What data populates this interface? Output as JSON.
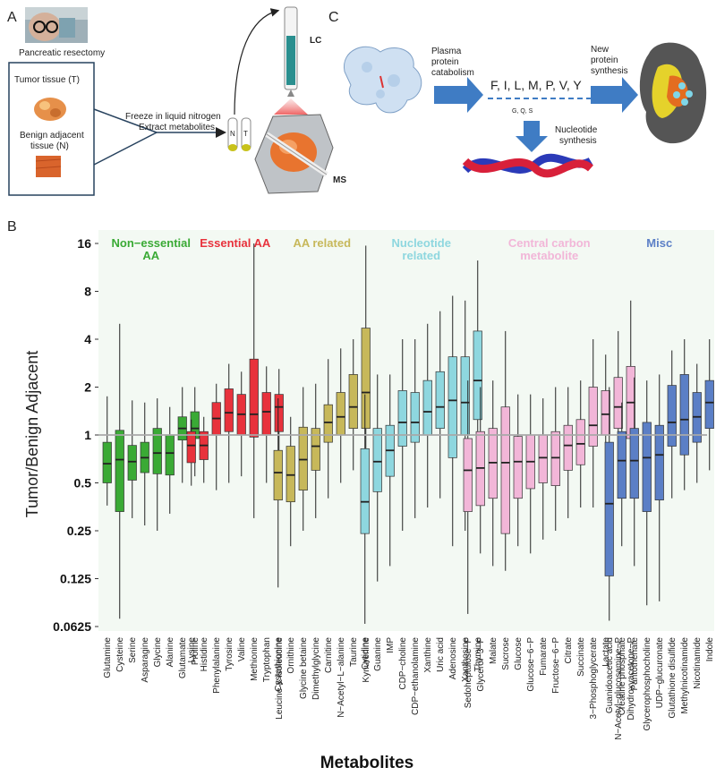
{
  "panelA": {
    "letter": "A",
    "photo_caption": "Pancreatic resectomy",
    "tumor_label": "Tumor tissue (T)",
    "benign_label_1": "Benign adjacent",
    "benign_label_2": "tissue (N)",
    "process_1": "Freeze in liquid nitrogen",
    "process_2": "Extract metabolites",
    "tube_N": "N",
    "tube_T": "T",
    "lc_label": "LC",
    "ms_label": "MS"
  },
  "panelC": {
    "letter": "C",
    "arrow1_1": "Plasma",
    "arrow1_2": "protein",
    "arrow1_3": "catabolism",
    "aa_list": "F, I, L, M, P, V, Y",
    "aa_small": "G, Q, S",
    "arrow2_1": "New",
    "arrow2_2": "protein",
    "arrow2_3": "synthesis",
    "nuc_1": "Nucleotide",
    "nuc_2": "synthesis"
  },
  "panelB": {
    "letter": "B"
  },
  "chart_data": {
    "type": "boxplot",
    "ylabel": "Tumor/Benign Adjacent",
    "xlabel": "Metabolites",
    "yscale": "log2",
    "ylim": [
      0.05,
      18
    ],
    "yticks": [
      0.0625,
      0.125,
      0.25,
      0.5,
      1,
      2,
      4,
      8,
      16
    ],
    "ytick_labels": [
      "0.0625",
      "0.125",
      "0.25",
      "0.5",
      "1",
      "2",
      "4",
      "8",
      "16"
    ],
    "reference_line": 1,
    "groups": [
      {
        "name_lines": [
          "Non−essential",
          "AA"
        ],
        "color": "#3aaa35",
        "metabolites": [
          {
            "name": "Glutamine",
            "whislo": 0.36,
            "q1": 0.5,
            "med": 0.66,
            "q3": 0.9,
            "whishi": 1.75
          },
          {
            "name": "Cysteine",
            "whislo": 0.07,
            "q1": 0.33,
            "med": 0.7,
            "q3": 1.07,
            "whishi": 5.0
          },
          {
            "name": "Serine",
            "whislo": 0.3,
            "q1": 0.52,
            "med": 0.68,
            "q3": 0.86,
            "whishi": 1.65
          },
          {
            "name": "Asparagine",
            "whislo": 0.27,
            "q1": 0.58,
            "med": 0.72,
            "q3": 0.9,
            "whishi": 1.6
          },
          {
            "name": "Glycine",
            "whislo": 0.25,
            "q1": 0.57,
            "med": 0.77,
            "q3": 1.1,
            "whishi": 1.7
          },
          {
            "name": "Alanine",
            "whislo": 0.32,
            "q1": 0.56,
            "med": 0.77,
            "q3": 1.0,
            "whishi": 1.5
          },
          {
            "name": "Glutamate",
            "whislo": 0.5,
            "q1": 0.93,
            "med": 1.1,
            "q3": 1.3,
            "whishi": 2.0
          },
          {
            "name": "Proline",
            "whislo": 0.55,
            "q1": 0.95,
            "med": 1.1,
            "q3": 1.4,
            "whishi": 2.0
          }
        ]
      },
      {
        "name_lines": [
          "Essential AA"
        ],
        "color": "#e8323c",
        "metabolites": [
          {
            "name": "Lysine",
            "whislo": 0.48,
            "q1": 0.67,
            "med": 0.86,
            "q3": 1.05,
            "whishi": 1.25
          },
          {
            "name": "Histidine",
            "whislo": 0.5,
            "q1": 0.7,
            "med": 0.86,
            "q3": 1.05,
            "whishi": 1.3
          },
          {
            "name": "Phenylalanine",
            "whislo": 0.45,
            "q1": 1.0,
            "med": 1.27,
            "q3": 1.6,
            "whishi": 2.1
          },
          {
            "name": "Tyrosine",
            "whislo": 0.5,
            "q1": 1.05,
            "med": 1.38,
            "q3": 1.95,
            "whishi": 2.8
          },
          {
            "name": "Valine",
            "whislo": 0.55,
            "q1": 1.0,
            "med": 1.35,
            "q3": 1.8,
            "whishi": 2.5
          },
          {
            "name": "Methionine",
            "whislo": 0.3,
            "q1": 0.97,
            "med": 1.35,
            "q3": 3.0,
            "whishi": 16.0
          },
          {
            "name": "Tryptophan",
            "whislo": 0.5,
            "q1": 1.0,
            "med": 1.4,
            "q3": 1.85,
            "whishi": 2.7
          },
          {
            "name": "Leucine & isoleucine",
            "whislo": 0.6,
            "q1": 1.05,
            "med": 1.5,
            "q3": 1.8,
            "whishi": 2.6
          }
        ]
      },
      {
        "name_lines": [
          "AA related"
        ],
        "color": "#c7b85a",
        "metabolites": [
          {
            "name": "Cystathionine",
            "whislo": 0.11,
            "q1": 0.39,
            "med": 0.58,
            "q3": 0.8,
            "whishi": 1.7
          },
          {
            "name": "Ornithine",
            "whislo": 0.2,
            "q1": 0.38,
            "med": 0.56,
            "q3": 0.85,
            "whishi": 1.3
          },
          {
            "name": "Glycine betaine",
            "whislo": 0.25,
            "q1": 0.45,
            "med": 0.7,
            "q3": 1.12,
            "whishi": 2.0
          },
          {
            "name": "Dimethylglycine",
            "whislo": 0.3,
            "q1": 0.6,
            "med": 0.85,
            "q3": 1.1,
            "whishi": 2.1
          },
          {
            "name": "Carnitine",
            "whislo": 0.4,
            "q1": 0.9,
            "med": 1.2,
            "q3": 1.55,
            "whishi": 3.0
          },
          {
            "name": "N−Acetyl−L−alanine",
            "whislo": 0.5,
            "q1": 1.0,
            "med": 1.3,
            "q3": 1.85,
            "whishi": 3.5
          },
          {
            "name": "Taurine",
            "whislo": 0.6,
            "q1": 1.1,
            "med": 1.5,
            "q3": 2.4,
            "whishi": 4.0
          },
          {
            "name": "Kynurenine",
            "whislo": 0.6,
            "q1": 1.1,
            "med": 1.85,
            "q3": 4.7,
            "whishi": 15.5
          }
        ]
      },
      {
        "name_lines": [
          "Nucleotide",
          "related"
        ],
        "color": "#8ed7df",
        "metabolites": [
          {
            "name": "Cytidine",
            "whislo": 0.065,
            "q1": 0.24,
            "med": 0.38,
            "q3": 0.82,
            "whishi": 1.8
          },
          {
            "name": "Guanine",
            "whislo": 0.12,
            "q1": 0.44,
            "med": 0.68,
            "q3": 1.1,
            "whishi": 2.4
          },
          {
            "name": "IMP",
            "whislo": 0.15,
            "q1": 0.55,
            "med": 0.8,
            "q3": 1.15,
            "whishi": 2.4
          },
          {
            "name": "CDP−choline",
            "whislo": 0.25,
            "q1": 0.85,
            "med": 1.2,
            "q3": 1.9,
            "whishi": 4.0
          },
          {
            "name": "CDP−ethanolamine",
            "whislo": 0.3,
            "q1": 0.9,
            "med": 1.2,
            "q3": 1.85,
            "whishi": 4.0
          },
          {
            "name": "Xanthine",
            "whislo": 0.35,
            "q1": 1.0,
            "med": 1.4,
            "q3": 2.2,
            "whishi": 5.0
          },
          {
            "name": "Uric acid",
            "whislo": 0.4,
            "q1": 1.1,
            "med": 1.5,
            "q3": 2.5,
            "whishi": 6.0
          },
          {
            "name": "Adenosine",
            "whislo": 0.2,
            "q1": 0.72,
            "med": 1.65,
            "q3": 3.1,
            "whishi": 7.5
          },
          {
            "name": "Xanthosine",
            "whislo": 0.25,
            "q1": 1.0,
            "med": 1.6,
            "q3": 3.1,
            "whishi": 7.0
          },
          {
            "name": "Thymine",
            "whislo": 0.45,
            "q1": 1.25,
            "med": 2.2,
            "q3": 4.5,
            "whishi": 12.5
          }
        ]
      },
      {
        "name_lines": [
          "Central carbon",
          "metabolite"
        ],
        "color": "#f2b6d8",
        "metabolites": [
          {
            "name": "Sedoheptulose−P",
            "whislo": 0.075,
            "q1": 0.33,
            "med": 0.6,
            "q3": 0.95,
            "whishi": 2.2
          },
          {
            "name": "Glycerol−3−P",
            "whislo": 0.18,
            "q1": 0.36,
            "med": 0.62,
            "q3": 1.05,
            "whishi": 2.0
          },
          {
            "name": "Malate",
            "whislo": 0.15,
            "q1": 0.4,
            "med": 0.67,
            "q3": 1.1,
            "whishi": 2.2
          },
          {
            "name": "Sucrose",
            "whislo": 0.14,
            "q1": 0.24,
            "med": 0.67,
            "q3": 1.5,
            "whishi": 4.5
          },
          {
            "name": "Glucose",
            "whislo": 0.2,
            "q1": 0.4,
            "med": 0.68,
            "q3": 0.98,
            "whishi": 1.8
          },
          {
            "name": "Glucose−6−P",
            "whislo": 0.18,
            "q1": 0.46,
            "med": 0.68,
            "q3": 1.0,
            "whishi": 1.8
          },
          {
            "name": "Fumarate",
            "whislo": 0.22,
            "q1": 0.5,
            "med": 0.72,
            "q3": 1.0,
            "whishi": 1.7
          },
          {
            "name": "Fructose−6−P",
            "whislo": 0.25,
            "q1": 0.48,
            "med": 0.72,
            "q3": 1.05,
            "whishi": 2.0
          },
          {
            "name": "Citrate",
            "whislo": 0.3,
            "q1": 0.6,
            "med": 0.86,
            "q3": 1.15,
            "whishi": 2.0
          },
          {
            "name": "Succinate",
            "whislo": 0.35,
            "q1": 0.65,
            "med": 0.88,
            "q3": 1.25,
            "whishi": 2.2
          },
          {
            "name": "3−Phosphoglycerate",
            "whislo": 0.35,
            "q1": 0.85,
            "med": 1.15,
            "q3": 2.0,
            "whishi": 4.0
          },
          {
            "name": "Lactate",
            "whislo": 0.5,
            "q1": 1.0,
            "med": 1.35,
            "q3": 1.9,
            "whishi": 3.2
          },
          {
            "name": "N−Acetyl−glucosamine−P",
            "whislo": 0.55,
            "q1": 1.1,
            "med": 1.5,
            "q3": 2.3,
            "whishi": 4.5
          },
          {
            "name": "Dihydroxyacetone−P",
            "whislo": 0.45,
            "q1": 0.95,
            "med": 1.6,
            "q3": 2.7,
            "whishi": 7.0
          }
        ]
      },
      {
        "name_lines": [
          "Misc"
        ],
        "color": "#5b7fc6",
        "metabolites": [
          {
            "name": "Guanidoacetic acid",
            "whislo": 0.068,
            "q1": 0.13,
            "med": 0.37,
            "q3": 0.9,
            "whishi": 2.0
          },
          {
            "name": "Creatine phosphate",
            "whislo": 0.2,
            "q1": 0.4,
            "med": 0.69,
            "q3": 1.05,
            "whishi": 1.6
          },
          {
            "name": "Pantothenate",
            "whislo": 0.15,
            "q1": 0.4,
            "med": 0.69,
            "q3": 1.1,
            "whishi": 2.3
          },
          {
            "name": "Glycerophosphocholine",
            "whislo": 0.085,
            "q1": 0.33,
            "med": 0.72,
            "q3": 1.2,
            "whishi": 2.2
          },
          {
            "name": "UDP−glucuronate",
            "whislo": 0.09,
            "q1": 0.39,
            "med": 0.75,
            "q3": 1.15,
            "whishi": 2.4
          },
          {
            "name": "Glutathione disulfide",
            "whislo": 0.4,
            "q1": 0.85,
            "med": 1.2,
            "q3": 2.05,
            "whishi": 3.4
          },
          {
            "name": "Methylnicotinamide",
            "whislo": 0.45,
            "q1": 0.75,
            "med": 1.25,
            "q3": 2.4,
            "whishi": 4.0
          },
          {
            "name": "Nicotinamide",
            "whislo": 0.5,
            "q1": 0.9,
            "med": 1.3,
            "q3": 1.85,
            "whishi": 2.8
          },
          {
            "name": "Indole",
            "whislo": 0.6,
            "q1": 1.1,
            "med": 1.6,
            "q3": 2.2,
            "whishi": 4.0
          }
        ]
      }
    ]
  }
}
